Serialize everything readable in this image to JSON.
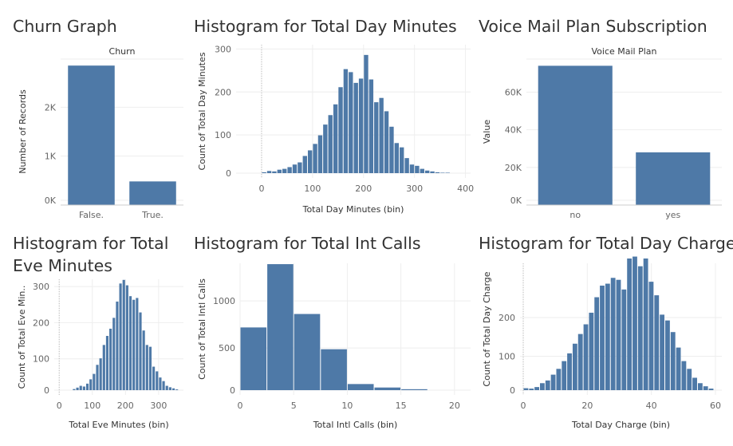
{
  "colors": {
    "bar": "#4e79a7",
    "grid": "#eeeeee",
    "axis": "#cccccc"
  },
  "chart_data": [
    {
      "id": "churn",
      "type": "bar",
      "title": "Churn Graph",
      "header": "Churn",
      "categories": [
        "False.",
        "True."
      ],
      "values": [
        2850,
        483
      ],
      "ylabel": "Number of Records",
      "xlabel": "",
      "ylim": [
        0,
        3000
      ],
      "yticks": [
        {
          "v": 0,
          "label": "0K"
        },
        {
          "v": 1000,
          "label": "1K"
        },
        {
          "v": 2000,
          "label": "2K"
        }
      ],
      "grid": true
    },
    {
      "id": "daymin",
      "type": "bar",
      "title": "Histogram for Total Day Minutes",
      "bin_width": 10,
      "x": [
        0,
        10,
        20,
        30,
        40,
        50,
        60,
        70,
        80,
        90,
        100,
        110,
        120,
        130,
        140,
        150,
        160,
        170,
        180,
        190,
        200,
        210,
        220,
        230,
        240,
        250,
        260,
        270,
        280,
        290,
        300,
        310,
        320,
        330,
        340,
        350,
        360
      ],
      "values": [
        2,
        5,
        4,
        8,
        10,
        14,
        20,
        25,
        40,
        53,
        68,
        88,
        113,
        135,
        160,
        200,
        242,
        235,
        210,
        220,
        275,
        218,
        165,
        175,
        144,
        108,
        70,
        60,
        35,
        20,
        17,
        10,
        6,
        4,
        2,
        1,
        1
      ],
      "xlabel": "Total Day Minutes (bin)",
      "ylabel": "Count of Total Day Minutes",
      "xlim": [
        -50,
        410
      ],
      "ylim": [
        0,
        310
      ],
      "xticks": [
        0,
        100,
        200,
        300,
        400
      ],
      "yticks": [
        0,
        100,
        200,
        300
      ],
      "grid": true
    },
    {
      "id": "vmail",
      "type": "bar",
      "title": "Voice Mail Plan Subscription",
      "header": "Voice Mail Plan",
      "categories": [
        "no",
        "yes"
      ],
      "values": [
        74000,
        28000
      ],
      "ylabel": "Value",
      "xlabel": "",
      "ylim": [
        0,
        78000
      ],
      "yticks": [
        {
          "v": 0,
          "label": "0K"
        },
        {
          "v": 20000,
          "label": "20K"
        },
        {
          "v": 40000,
          "label": "40K"
        },
        {
          "v": 60000,
          "label": "60K"
        }
      ],
      "grid": true
    },
    {
      "id": "evemin",
      "type": "bar",
      "title": "Histogram for Total Eve Minutes",
      "title_lines": [
        "Histogram for Total",
        "Eve Minutes"
      ],
      "bin_width": 10,
      "x": [
        40,
        50,
        60,
        70,
        80,
        90,
        100,
        110,
        120,
        130,
        140,
        150,
        160,
        170,
        180,
        190,
        200,
        210,
        220,
        230,
        240,
        250,
        260,
        270,
        280,
        290,
        300,
        310,
        320,
        330,
        340,
        350
      ],
      "values": [
        3,
        7,
        12,
        10,
        18,
        30,
        45,
        70,
        88,
        125,
        150,
        170,
        200,
        245,
        295,
        305,
        290,
        260,
        250,
        255,
        215,
        165,
        125,
        120,
        65,
        52,
        35,
        25,
        12,
        8,
        5,
        2
      ],
      "xlabel": "Total Eve Minutes (bin)",
      "ylabel": "Count of Total Eve Min..",
      "xlim": [
        -15,
        375
      ],
      "ylim": [
        0,
        320
      ],
      "xticks": [
        0,
        100,
        200,
        300
      ],
      "yticks": [
        0,
        100,
        200,
        300
      ],
      "grid": true
    },
    {
      "id": "intl",
      "type": "bar",
      "title": "Histogram for Total Int Calls",
      "bin_width": 2.5,
      "x": [
        0,
        2.5,
        5,
        7.5,
        10,
        12.5,
        15
      ],
      "values": [
        667,
        1340,
        810,
        435,
        65,
        28,
        10
      ],
      "xlabel": "Total Intl Calls (bin)",
      "ylabel": "Count of Total Intl Calls",
      "xlim": [
        0,
        21.5
      ],
      "ylim": [
        0,
        1400
      ],
      "xticks": [
        0,
        5,
        10,
        15,
        20
      ],
      "yticks": [
        0,
        500,
        1000
      ],
      "grid": true
    },
    {
      "id": "daycharge",
      "type": "bar",
      "title": "Histogram for Total Day Charge",
      "bin_width": 1.7,
      "x": [
        0,
        1.7,
        3.4,
        5.1,
        6.8,
        8.5,
        10.2,
        11.9,
        13.6,
        15.3,
        17,
        18.7,
        20.4,
        22.1,
        23.8,
        25.5,
        27.2,
        28.9,
        30.6,
        32.3,
        34,
        35.7,
        37.4,
        39.1,
        40.8,
        42.5,
        44.2,
        45.9,
        47.6,
        49.3,
        51,
        52.7,
        54.4,
        56.1,
        57.8
      ],
      "values": [
        5,
        4,
        8,
        18,
        25,
        40,
        55,
        75,
        95,
        120,
        145,
        170,
        200,
        240,
        270,
        275,
        290,
        285,
        260,
        340,
        345,
        320,
        340,
        280,
        245,
        195,
        180,
        150,
        110,
        75,
        55,
        32,
        18,
        10,
        4
      ],
      "xlabel": "Total Day Charge (bin)",
      "ylabel": "Count of Total Day Charge",
      "xlim": [
        -1,
        62
      ],
      "ylim": [
        0,
        340
      ],
      "xticks": [
        0,
        20,
        40,
        60
      ],
      "yticks": [
        0,
        100,
        200
      ],
      "grid": true
    }
  ]
}
